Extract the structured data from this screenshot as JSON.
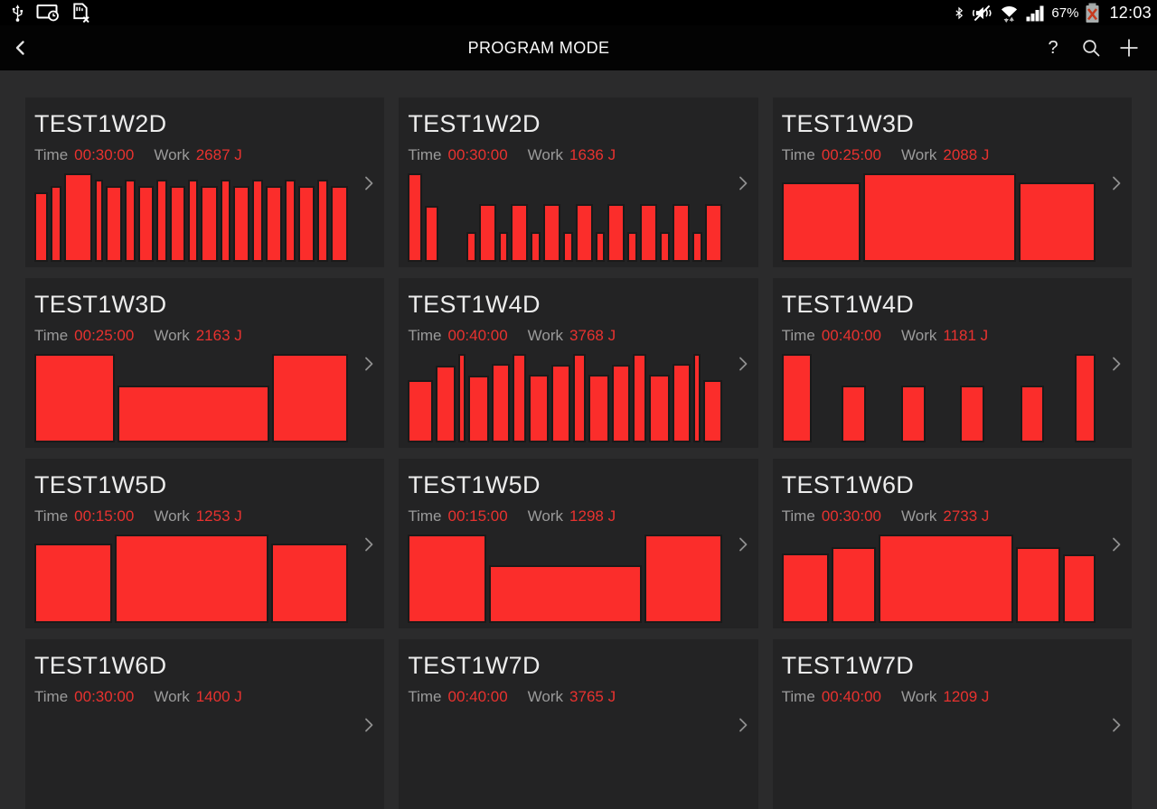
{
  "status_bar": {
    "left_icons": [
      "usb-icon",
      "screen-timeout-icon",
      "sim-missing-icon"
    ],
    "right_icons": [
      "bluetooth-icon",
      "mute-vibrate-icon",
      "wifi-icon",
      "signal-strength-icon",
      "battery-error-icon"
    ],
    "battery_percent": "67%",
    "time": "12:03"
  },
  "header": {
    "title": "PROGRAM MODE",
    "actions": [
      "back",
      "help",
      "search",
      "add"
    ],
    "help_glyph": "?"
  },
  "labels": {
    "time": "Time",
    "work": "Work"
  },
  "colors": {
    "bar_red": "#fb2d2b",
    "value_red": "#e8322f",
    "card_bg": "#232324",
    "page_bg": "#2b2b2c",
    "battery_x_red": "#c63a1e"
  },
  "programs": [
    {
      "title": "TEST1W2D",
      "time": "00:30:00",
      "work": "2687 J",
      "bars": [
        [
          15,
          0.79
        ],
        [
          12,
          0.86
        ],
        [
          37,
          1
        ],
        [
          8,
          0.93
        ],
        [
          19,
          0.86
        ],
        [
          11,
          0.93
        ],
        [
          19,
          0.86
        ],
        [
          10,
          0.93
        ],
        [
          19,
          0.86
        ],
        [
          10,
          0.93
        ],
        [
          20,
          0.86
        ],
        [
          10,
          0.93
        ],
        [
          20,
          0.86
        ],
        [
          11,
          0.93
        ],
        [
          20,
          0.86
        ],
        [
          11,
          0.93
        ],
        [
          20,
          0.86
        ],
        [
          11,
          0.93
        ],
        [
          21,
          0.86
        ]
      ]
    },
    {
      "title": "TEST1W2D",
      "time": "00:30:00",
      "work": "1636 J",
      "bars": [
        [
          19,
          1
        ],
        [
          17,
          0.63
        ],
        [
          40,
          0
        ],
        [
          12,
          0.34
        ],
        [
          24,
          0.65
        ],
        [
          10,
          0.34
        ],
        [
          24,
          0.65
        ],
        [
          11,
          0.34
        ],
        [
          24,
          0.65
        ],
        [
          11,
          0.34
        ],
        [
          24,
          0.65
        ],
        [
          11,
          0.34
        ],
        [
          24,
          0.65
        ],
        [
          11,
          0.34
        ],
        [
          24,
          0.65
        ],
        [
          11,
          0.34
        ],
        [
          24,
          0.65
        ],
        [
          11,
          0.34
        ],
        [
          24,
          0.65
        ]
      ]
    },
    {
      "title": "TEST1W3D",
      "time": "00:25:00",
      "work": "2088 J",
      "bars": [
        [
          92,
          0.9
        ],
        [
          183,
          1
        ],
        [
          89,
          0.9
        ]
      ]
    },
    {
      "title": "TEST1W3D",
      "time": "00:25:00",
      "work": "2163 J",
      "bars": [
        [
          95,
          1
        ],
        [
          182,
          0.64
        ],
        [
          90,
          1
        ]
      ]
    },
    {
      "title": "TEST1W4D",
      "time": "00:40:00",
      "work": "3768 J",
      "bars": [
        [
          37,
          0.7
        ],
        [
          27,
          0.87
        ],
        [
          6,
          1
        ],
        [
          29,
          0.76
        ],
        [
          25,
          0.89
        ],
        [
          16,
          1
        ],
        [
          29,
          0.77
        ],
        [
          25,
          0.88
        ],
        [
          16,
          1
        ],
        [
          29,
          0.77
        ],
        [
          25,
          0.88
        ],
        [
          16,
          1
        ],
        [
          29,
          0.77
        ],
        [
          25,
          0.89
        ],
        [
          6,
          1
        ],
        [
          26,
          0.7
        ]
      ]
    },
    {
      "title": "TEST1W4D",
      "time": "00:40:00",
      "work": "1181 J",
      "bars": [
        [
          36,
          1
        ],
        [
          34,
          0
        ],
        [
          28,
          0.64
        ],
        [
          42,
          0
        ],
        [
          28,
          0.64
        ],
        [
          40,
          0
        ],
        [
          28,
          0.64
        ],
        [
          42,
          0
        ],
        [
          28,
          0.64
        ],
        [
          34,
          0
        ],
        [
          24,
          1
        ]
      ]
    },
    {
      "title": "TEST1W5D",
      "time": "00:15:00",
      "work": "1253 J",
      "bars": [
        [
          89,
          0.9
        ],
        [
          181,
          1
        ],
        [
          89,
          0.9
        ]
      ]
    },
    {
      "title": "TEST1W5D",
      "time": "00:15:00",
      "work": "1298 J",
      "bars": [
        [
          93,
          1
        ],
        [
          186,
          0.65
        ],
        [
          92,
          1
        ]
      ]
    },
    {
      "title": "TEST1W6D",
      "time": "00:30:00",
      "work": "2733 J",
      "bars": [
        [
          55,
          0.79
        ],
        [
          52,
          0.86
        ],
        [
          165,
          1
        ],
        [
          52,
          0.86
        ],
        [
          36,
          0.78
        ]
      ]
    },
    {
      "title": "TEST1W6D",
      "time": "00:30:00",
      "work": "1400 J",
      "bars": []
    },
    {
      "title": "TEST1W7D",
      "time": "00:40:00",
      "work": "3765 J",
      "bars": []
    },
    {
      "title": "TEST1W7D",
      "time": "00:40:00",
      "work": "1209 J",
      "bars": []
    }
  ]
}
